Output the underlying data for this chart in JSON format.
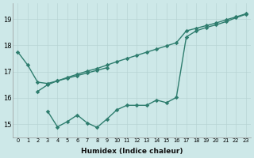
{
  "color": "#2e7d6e",
  "bg_color": "#cde8e8",
  "grid_color": "#b8d4d4",
  "xlabel": "Humidex (Indice chaleur)",
  "yticks": [
    15,
    16,
    17,
    18,
    19
  ],
  "xticks": [
    0,
    1,
    2,
    3,
    4,
    5,
    6,
    7,
    8,
    9,
    10,
    11,
    12,
    13,
    14,
    15,
    16,
    17,
    18,
    19,
    20,
    21,
    22,
    23
  ],
  "ylim": [
    14.5,
    19.6
  ],
  "xlim": [
    -0.5,
    23.5
  ],
  "line_a_x": [
    0,
    1,
    2,
    3,
    4,
    5,
    6,
    7,
    8,
    9
  ],
  "line_a_y": [
    17.75,
    17.25,
    16.6,
    16.55,
    16.65,
    16.75,
    16.85,
    16.95,
    17.05,
    17.15
  ],
  "line_b_x": [
    2,
    3,
    4,
    5,
    6,
    7,
    8,
    9,
    10,
    11,
    12,
    13,
    14,
    15,
    16,
    17,
    18,
    19,
    20,
    21,
    22,
    23
  ],
  "line_b_y": [
    16.25,
    16.5,
    16.65,
    16.78,
    16.9,
    17.02,
    17.12,
    17.25,
    17.38,
    17.5,
    17.62,
    17.74,
    17.86,
    17.98,
    18.1,
    18.55,
    18.65,
    18.75,
    18.85,
    18.97,
    19.08,
    19.2
  ],
  "line_c_x": [
    3,
    4,
    5,
    6,
    7,
    8,
    9,
    10,
    11,
    12,
    13,
    14,
    15,
    16,
    17,
    18,
    19,
    20,
    21,
    22,
    23
  ],
  "line_c_y": [
    15.5,
    14.9,
    15.1,
    15.35,
    15.05,
    14.88,
    15.2,
    15.55,
    15.72,
    15.72,
    15.72,
    15.92,
    15.82,
    16.02,
    18.32,
    18.55,
    18.68,
    18.78,
    18.9,
    19.05,
    19.18
  ]
}
